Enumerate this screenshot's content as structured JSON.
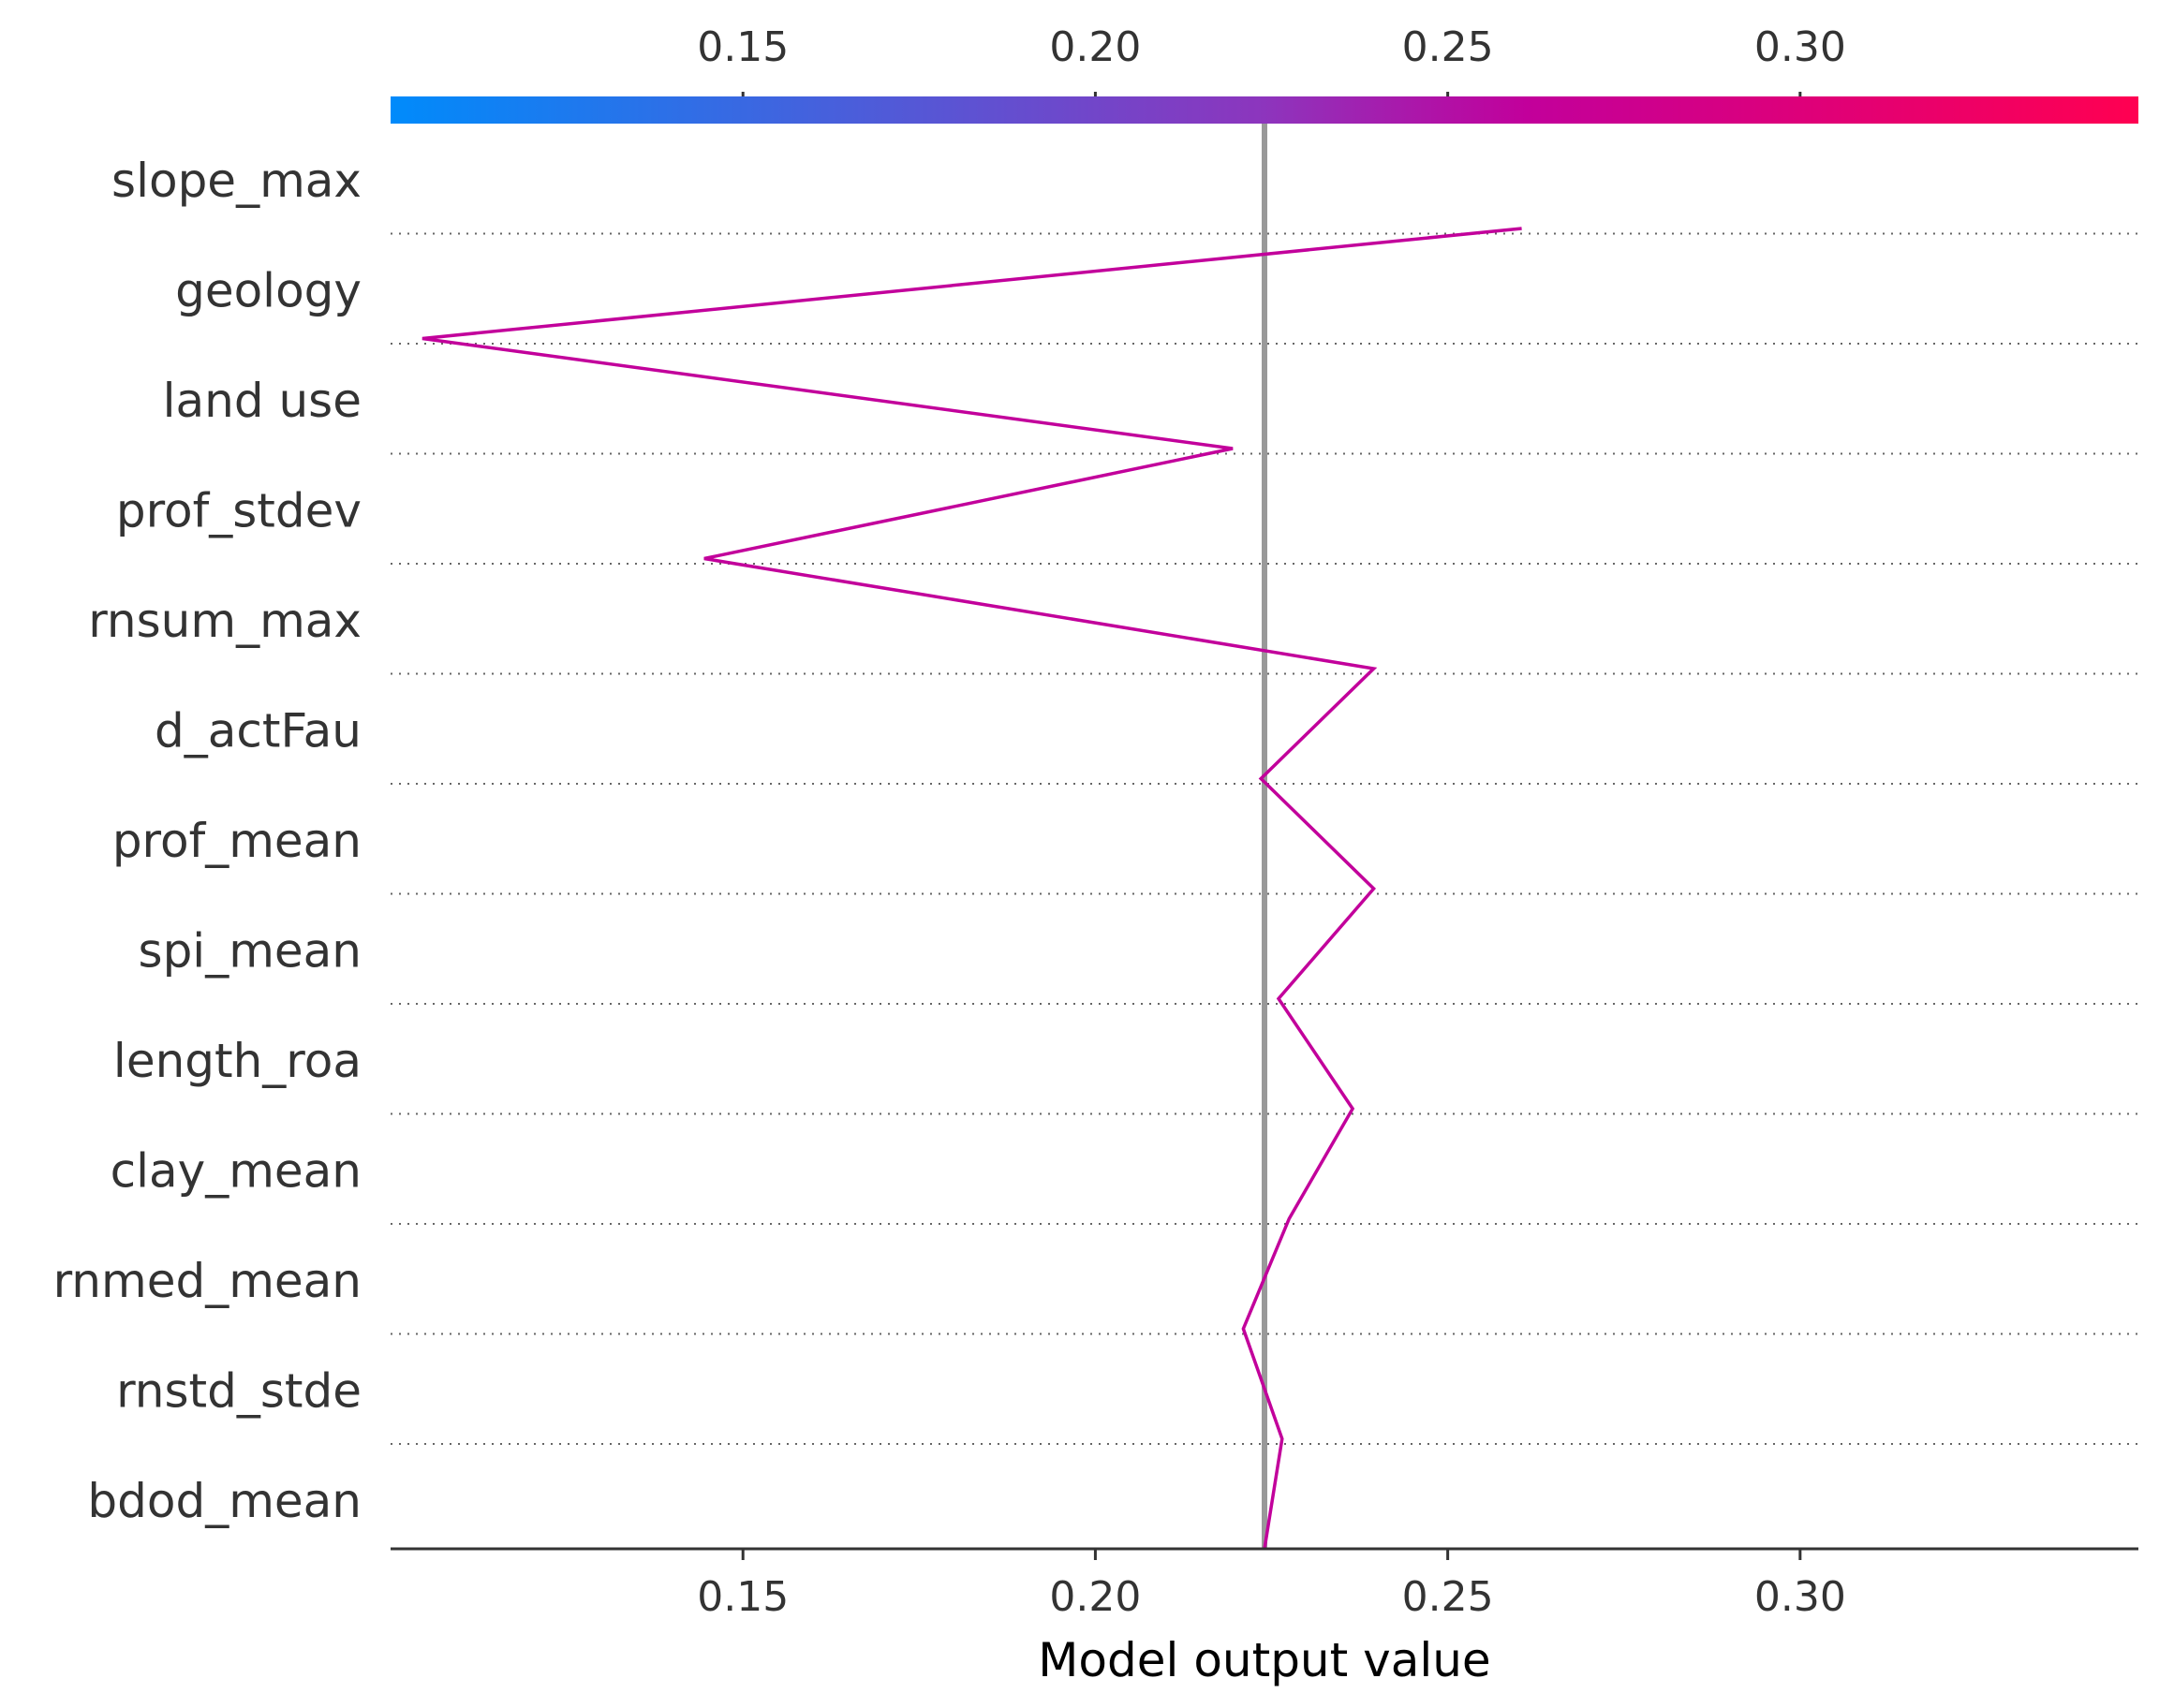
{
  "chart_data": {
    "type": "line",
    "subtype": "shap-decision-plot",
    "xlabel": "Model output value",
    "ylabel": "",
    "xlim": [
      0.1,
      0.348
    ],
    "x_ticks": [
      "0.15",
      "0.20",
      "0.25",
      "0.30"
    ],
    "x_tick_values": [
      0.15,
      0.2,
      0.25,
      0.3
    ],
    "base_value": 0.224,
    "features": [
      "slope_max",
      "geology",
      "land use",
      "prof_stdev",
      "rnsum_max",
      "d_actFau",
      "prof_mean",
      "spi_mean",
      "length_roa",
      "clay_mean",
      "rnmed_mean",
      "rnstd_stde",
      "bdod_mean"
    ],
    "path_x": [
      0.224,
      0.2265,
      0.221,
      0.2275,
      0.2365,
      0.226,
      0.2395,
      0.2235,
      0.2395,
      0.1445,
      0.2195,
      0.1045,
      0.2605
    ],
    "colorbar": {
      "from": "#008bfb",
      "mid": "#c2009b",
      "to": "#ff0051"
    },
    "line_color": "#c2009b",
    "base_line_color": "#999999",
    "grid": "dotted horizontal"
  }
}
